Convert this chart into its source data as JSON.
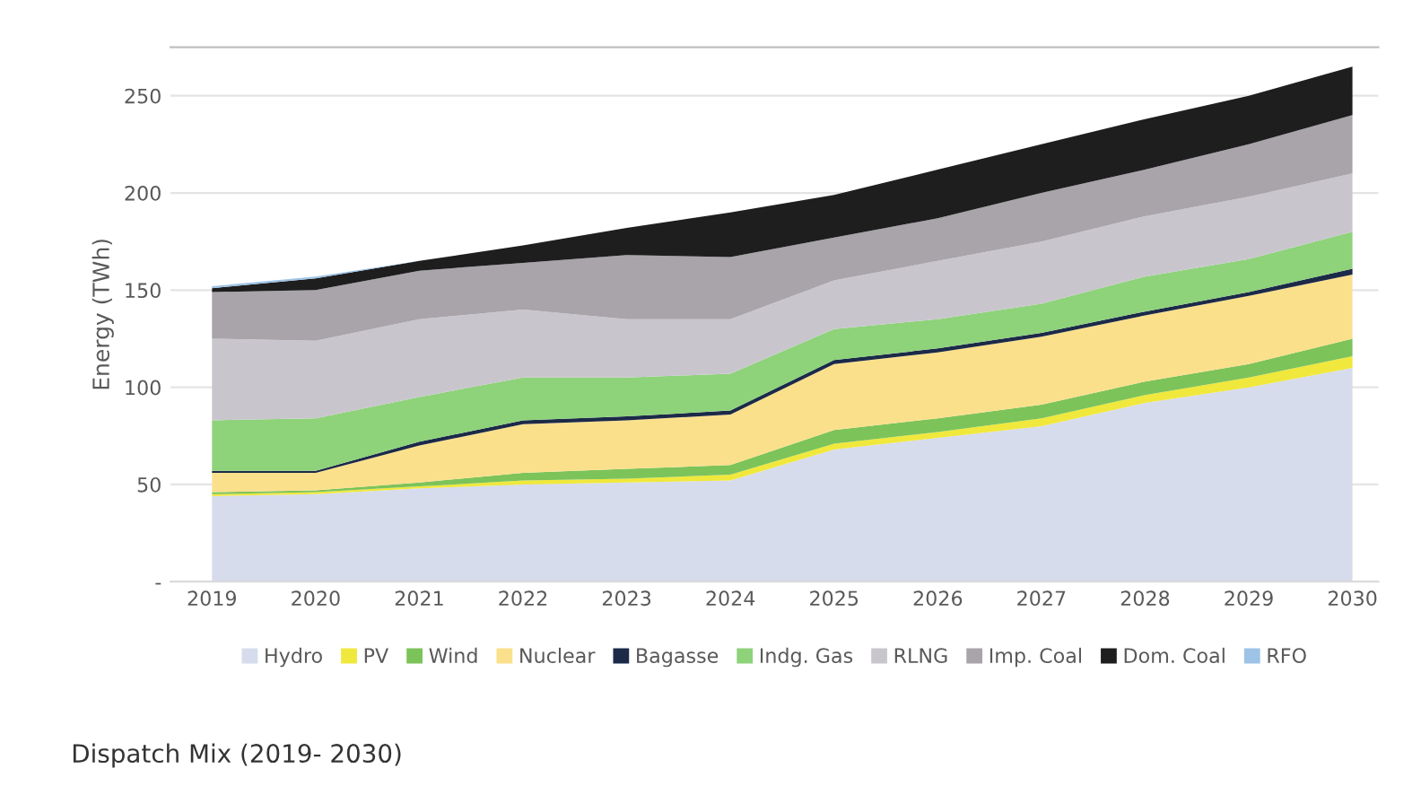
{
  "chart_data": {
    "type": "area",
    "stacked": true,
    "title": "Dispatch Mix (2019- 2030)",
    "ylabel": "Energy (TWh)",
    "categories": [
      "2019",
      "2020",
      "2021",
      "2022",
      "2023",
      "2024",
      "2025",
      "2026",
      "2027",
      "2028",
      "2029",
      "2030"
    ],
    "series": [
      {
        "name": "Hydro",
        "color": "#d6dcec",
        "values": [
          44,
          45,
          48,
          50,
          51,
          52,
          68,
          74,
          80,
          92,
          100,
          110
        ]
      },
      {
        "name": "PV",
        "color": "#f0e83c",
        "values": [
          1,
          1,
          1,
          2,
          2,
          3,
          3,
          3,
          4,
          4,
          5,
          6
        ]
      },
      {
        "name": "Wind",
        "color": "#7cc35a",
        "values": [
          1,
          1,
          2,
          4,
          5,
          5,
          7,
          7,
          7,
          7,
          7,
          9
        ]
      },
      {
        "name": "Nuclear",
        "color": "#fbe08c",
        "values": [
          10,
          9,
          19,
          25,
          25,
          26,
          34,
          34,
          35,
          34,
          35,
          33
        ]
      },
      {
        "name": "Bagasse",
        "color": "#1c2a48",
        "values": [
          1,
          1,
          2,
          2,
          2,
          2,
          2,
          2,
          2,
          2,
          2,
          3
        ]
      },
      {
        "name": "Indg. Gas",
        "color": "#8ed27a",
        "values": [
          26,
          27,
          23,
          22,
          20,
          19,
          16,
          15,
          15,
          18,
          17,
          19
        ]
      },
      {
        "name": "RLNG",
        "color": "#c8c6cc",
        "values": [
          42,
          40,
          40,
          35,
          30,
          28,
          25,
          30,
          32,
          31,
          32,
          30
        ]
      },
      {
        "name": "Imp. Coal",
        "color": "#a8a4aa",
        "values": [
          24,
          26,
          25,
          24,
          33,
          32,
          22,
          22,
          25,
          24,
          27,
          30
        ]
      },
      {
        "name": "Dom. Coal",
        "color": "#1e1e1e",
        "values": [
          2,
          6,
          5,
          9,
          14,
          23,
          22,
          25,
          25,
          26,
          25,
          25
        ]
      },
      {
        "name": "RFO",
        "color": "#9dc3e6",
        "values": [
          1,
          1,
          0,
          0,
          0,
          0,
          0,
          0,
          0,
          0,
          0,
          0
        ]
      }
    ],
    "ylim": [
      0,
      275
    ],
    "yticks": [
      {
        "value": 0,
        "label": "-"
      },
      50,
      100,
      150,
      200,
      250
    ],
    "grid": "y",
    "legend": "bottom"
  }
}
